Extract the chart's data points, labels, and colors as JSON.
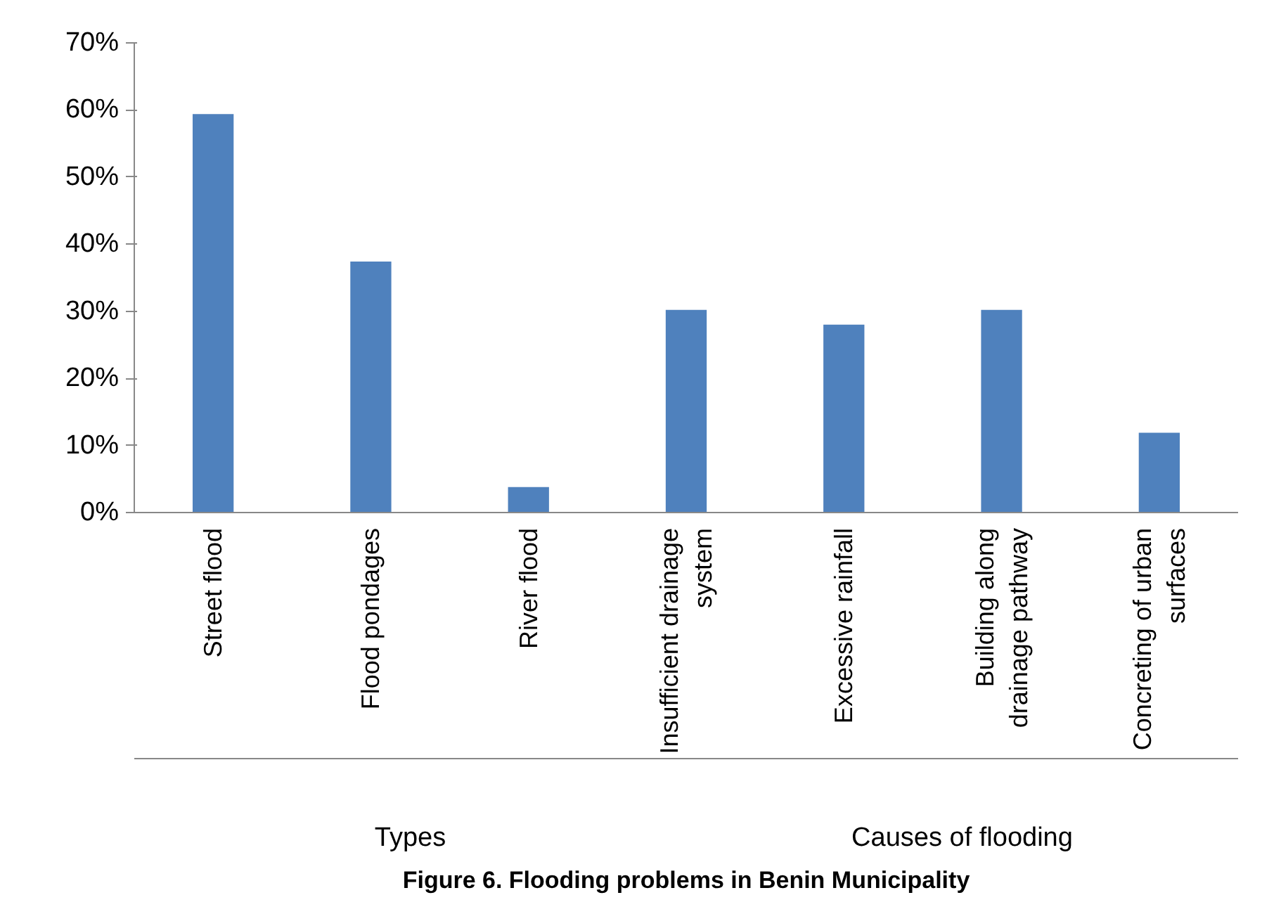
{
  "chart_data": {
    "type": "bar",
    "title": "Figure 6. Flooding problems in Benin Municipality",
    "categories": [
      "Street flood",
      "Flood pondages",
      "River flood",
      "Insufficient drainage system",
      "Excessive rainfall",
      "Building along drainage pathway",
      "Concreting of urban surfaces"
    ],
    "values": [
      59.4,
      37.4,
      3.8,
      30.2,
      28.0,
      30.2,
      11.9
    ],
    "color": "#4f81bd",
    "ylim": [
      0,
      70
    ],
    "yticks": [
      {
        "value": 0,
        "label": "0%"
      },
      {
        "value": 10,
        "label": "10%"
      },
      {
        "value": 20,
        "label": "20%"
      },
      {
        "value": 30,
        "label": "30%"
      },
      {
        "value": 40,
        "label": "40%"
      },
      {
        "value": 50,
        "label": "50%"
      },
      {
        "value": 60,
        "label": "60%"
      },
      {
        "value": 70,
        "label": "70%"
      }
    ],
    "annotations": [
      "Types",
      "Causes of flooding"
    ],
    "grid": false
  }
}
